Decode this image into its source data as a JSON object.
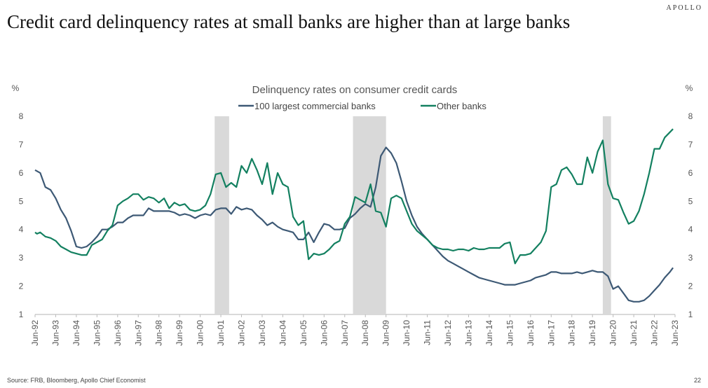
{
  "header": {
    "brand": "APOLLO",
    "title": "Credit card delinquency rates at small banks are higher than at large banks"
  },
  "footer": {
    "source": "Source: FRB, Bloomberg, Apollo Chief Economist",
    "page_number": "22"
  },
  "colors": {
    "large_banks": "#3d5975",
    "other_banks": "#138060",
    "recession": "#d9d9d9"
  },
  "chart_data": {
    "type": "line",
    "title": "Delinquency rates on consumer credit cards",
    "ylabel_left": "%",
    "ylabel_right": "%",
    "ylim": [
      1,
      8
    ],
    "yticks": [
      1,
      2,
      3,
      4,
      5,
      6,
      7,
      8
    ],
    "xlim": [
      1992.5,
      2023.5
    ],
    "x_tick_labels": [
      "Jun-92",
      "Jun-93",
      "Jun-94",
      "Jun-95",
      "Jun-96",
      "Jun-97",
      "Jun-98",
      "Jun-99",
      "Jun-00",
      "Jun-01",
      "Jun-02",
      "Jun-03",
      "Jun-04",
      "Jun-05",
      "Jun-06",
      "Jun-07",
      "Jun-08",
      "Jun-09",
      "Jun-10",
      "Jun-11",
      "Jun-12",
      "Jun-13",
      "Jun-14",
      "Jun-15",
      "Jun-16",
      "Jun-17",
      "Jun-18",
      "Jun-19",
      "Jun-20",
      "Jun-21",
      "Jun-22",
      "Jun-23"
    ],
    "recessions": [
      [
        2001.2,
        2001.9
      ],
      [
        2007.9,
        2009.5
      ],
      [
        2020.0,
        2020.4
      ]
    ],
    "legend_position": "top-center",
    "series": [
      {
        "name": "100 largest commercial banks",
        "color": "#3d5975",
        "points": [
          [
            1992.5,
            6.1
          ],
          [
            1992.75,
            6.0
          ],
          [
            1993.0,
            5.5
          ],
          [
            1993.25,
            5.4
          ],
          [
            1993.5,
            5.1
          ],
          [
            1993.75,
            4.7
          ],
          [
            1994.0,
            4.4
          ],
          [
            1994.25,
            3.95
          ],
          [
            1994.5,
            3.4
          ],
          [
            1994.75,
            3.35
          ],
          [
            1995.0,
            3.4
          ],
          [
            1995.25,
            3.55
          ],
          [
            1995.5,
            3.75
          ],
          [
            1995.75,
            4.0
          ],
          [
            1996.0,
            4.0
          ],
          [
            1996.25,
            4.1
          ],
          [
            1996.5,
            4.25
          ],
          [
            1996.75,
            4.25
          ],
          [
            1997.0,
            4.4
          ],
          [
            1997.25,
            4.5
          ],
          [
            1997.5,
            4.5
          ],
          [
            1997.75,
            4.5
          ],
          [
            1998.0,
            4.75
          ],
          [
            1998.25,
            4.65
          ],
          [
            1998.5,
            4.65
          ],
          [
            1998.75,
            4.65
          ],
          [
            1999.0,
            4.65
          ],
          [
            1999.25,
            4.6
          ],
          [
            1999.5,
            4.5
          ],
          [
            1999.75,
            4.55
          ],
          [
            2000.0,
            4.5
          ],
          [
            2000.25,
            4.4
          ],
          [
            2000.5,
            4.5
          ],
          [
            2000.75,
            4.55
          ],
          [
            2001.0,
            4.5
          ],
          [
            2001.25,
            4.7
          ],
          [
            2001.5,
            4.75
          ],
          [
            2001.75,
            4.75
          ],
          [
            2002.0,
            4.55
          ],
          [
            2002.25,
            4.8
          ],
          [
            2002.5,
            4.7
          ],
          [
            2002.75,
            4.75
          ],
          [
            2003.0,
            4.7
          ],
          [
            2003.25,
            4.5
          ],
          [
            2003.5,
            4.35
          ],
          [
            2003.75,
            4.15
          ],
          [
            2004.0,
            4.25
          ],
          [
            2004.25,
            4.1
          ],
          [
            2004.5,
            4.0
          ],
          [
            2004.75,
            3.95
          ],
          [
            2005.0,
            3.9
          ],
          [
            2005.25,
            3.65
          ],
          [
            2005.5,
            3.65
          ],
          [
            2005.75,
            3.9
          ],
          [
            2006.0,
            3.55
          ],
          [
            2006.25,
            3.9
          ],
          [
            2006.5,
            4.2
          ],
          [
            2006.75,
            4.15
          ],
          [
            2007.0,
            4.0
          ],
          [
            2007.25,
            4.0
          ],
          [
            2007.5,
            4.05
          ],
          [
            2007.75,
            4.4
          ],
          [
            2008.0,
            4.55
          ],
          [
            2008.25,
            4.75
          ],
          [
            2008.5,
            4.9
          ],
          [
            2008.75,
            4.8
          ],
          [
            2009.0,
            5.5
          ],
          [
            2009.25,
            6.6
          ],
          [
            2009.5,
            6.9
          ],
          [
            2009.75,
            6.7
          ],
          [
            2010.0,
            6.35
          ],
          [
            2010.25,
            5.7
          ],
          [
            2010.5,
            5.0
          ],
          [
            2010.75,
            4.5
          ],
          [
            2011.0,
            4.1
          ],
          [
            2011.25,
            3.85
          ],
          [
            2011.5,
            3.65
          ],
          [
            2011.75,
            3.45
          ],
          [
            2012.0,
            3.25
          ],
          [
            2012.25,
            3.05
          ],
          [
            2012.5,
            2.9
          ],
          [
            2012.75,
            2.8
          ],
          [
            2013.0,
            2.7
          ],
          [
            2013.25,
            2.6
          ],
          [
            2013.5,
            2.5
          ],
          [
            2013.75,
            2.4
          ],
          [
            2014.0,
            2.3
          ],
          [
            2014.25,
            2.25
          ],
          [
            2014.5,
            2.2
          ],
          [
            2014.75,
            2.15
          ],
          [
            2015.0,
            2.1
          ],
          [
            2015.25,
            2.05
          ],
          [
            2015.5,
            2.05
          ],
          [
            2015.75,
            2.05
          ],
          [
            2016.0,
            2.1
          ],
          [
            2016.25,
            2.15
          ],
          [
            2016.5,
            2.2
          ],
          [
            2016.75,
            2.3
          ],
          [
            2017.0,
            2.35
          ],
          [
            2017.25,
            2.4
          ],
          [
            2017.5,
            2.5
          ],
          [
            2017.75,
            2.5
          ],
          [
            2018.0,
            2.45
          ],
          [
            2018.25,
            2.45
          ],
          [
            2018.5,
            2.45
          ],
          [
            2018.75,
            2.5
          ],
          [
            2019.0,
            2.45
          ],
          [
            2019.25,
            2.5
          ],
          [
            2019.5,
            2.55
          ],
          [
            2019.75,
            2.5
          ],
          [
            2020.0,
            2.5
          ],
          [
            2020.25,
            2.35
          ],
          [
            2020.5,
            1.9
          ],
          [
            2020.75,
            2.0
          ],
          [
            2021.0,
            1.75
          ],
          [
            2021.25,
            1.5
          ],
          [
            2021.5,
            1.45
          ],
          [
            2021.75,
            1.45
          ],
          [
            2022.0,
            1.5
          ],
          [
            2022.25,
            1.65
          ],
          [
            2022.5,
            1.85
          ],
          [
            2022.75,
            2.05
          ],
          [
            2023.0,
            2.3
          ],
          [
            2023.25,
            2.5
          ],
          [
            2023.4,
            2.65
          ]
        ]
      },
      {
        "name": "Other banks",
        "color": "#138060",
        "points": [
          [
            1992.5,
            3.9
          ],
          [
            1992.6,
            3.85
          ],
          [
            1992.75,
            3.9
          ],
          [
            1993.0,
            3.75
          ],
          [
            1993.25,
            3.7
          ],
          [
            1993.5,
            3.6
          ],
          [
            1993.75,
            3.4
          ],
          [
            1994.0,
            3.3
          ],
          [
            1994.25,
            3.2
          ],
          [
            1994.5,
            3.15
          ],
          [
            1994.75,
            3.1
          ],
          [
            1995.0,
            3.1
          ],
          [
            1995.25,
            3.45
          ],
          [
            1995.5,
            3.55
          ],
          [
            1995.75,
            3.65
          ],
          [
            1996.0,
            3.95
          ],
          [
            1996.25,
            4.15
          ],
          [
            1996.5,
            4.85
          ],
          [
            1996.75,
            5.0
          ],
          [
            1997.0,
            5.1
          ],
          [
            1997.25,
            5.25
          ],
          [
            1997.5,
            5.25
          ],
          [
            1997.75,
            5.05
          ],
          [
            1998.0,
            5.15
          ],
          [
            1998.25,
            5.1
          ],
          [
            1998.5,
            4.95
          ],
          [
            1998.75,
            5.1
          ],
          [
            1999.0,
            4.75
          ],
          [
            1999.25,
            4.95
          ],
          [
            1999.5,
            4.85
          ],
          [
            1999.75,
            4.9
          ],
          [
            2000.0,
            4.7
          ],
          [
            2000.25,
            4.65
          ],
          [
            2000.5,
            4.7
          ],
          [
            2000.75,
            4.85
          ],
          [
            2001.0,
            5.25
          ],
          [
            2001.25,
            5.95
          ],
          [
            2001.5,
            6.0
          ],
          [
            2001.75,
            5.5
          ],
          [
            2002.0,
            5.65
          ],
          [
            2002.25,
            5.5
          ],
          [
            2002.5,
            6.25
          ],
          [
            2002.75,
            6.0
          ],
          [
            2003.0,
            6.5
          ],
          [
            2003.25,
            6.1
          ],
          [
            2003.5,
            5.6
          ],
          [
            2003.75,
            6.35
          ],
          [
            2004.0,
            5.25
          ],
          [
            2004.25,
            6.0
          ],
          [
            2004.5,
            5.6
          ],
          [
            2004.75,
            5.5
          ],
          [
            2005.0,
            4.45
          ],
          [
            2005.25,
            4.15
          ],
          [
            2005.5,
            4.3
          ],
          [
            2005.75,
            2.95
          ],
          [
            2006.0,
            3.15
          ],
          [
            2006.25,
            3.1
          ],
          [
            2006.5,
            3.15
          ],
          [
            2006.75,
            3.3
          ],
          [
            2007.0,
            3.5
          ],
          [
            2007.25,
            3.6
          ],
          [
            2007.5,
            4.2
          ],
          [
            2007.75,
            4.45
          ],
          [
            2008.0,
            5.15
          ],
          [
            2008.25,
            5.05
          ],
          [
            2008.5,
            4.95
          ],
          [
            2008.75,
            5.6
          ],
          [
            2009.0,
            4.65
          ],
          [
            2009.25,
            4.6
          ],
          [
            2009.5,
            4.1
          ],
          [
            2009.75,
            5.1
          ],
          [
            2010.0,
            5.2
          ],
          [
            2010.25,
            5.1
          ],
          [
            2010.5,
            4.65
          ],
          [
            2010.75,
            4.2
          ],
          [
            2011.0,
            3.95
          ],
          [
            2011.25,
            3.8
          ],
          [
            2011.5,
            3.65
          ],
          [
            2011.75,
            3.45
          ],
          [
            2012.0,
            3.35
          ],
          [
            2012.25,
            3.3
          ],
          [
            2012.5,
            3.3
          ],
          [
            2012.75,
            3.25
          ],
          [
            2013.0,
            3.3
          ],
          [
            2013.25,
            3.3
          ],
          [
            2013.5,
            3.25
          ],
          [
            2013.75,
            3.35
          ],
          [
            2014.0,
            3.3
          ],
          [
            2014.25,
            3.3
          ],
          [
            2014.5,
            3.35
          ],
          [
            2014.75,
            3.35
          ],
          [
            2015.0,
            3.35
          ],
          [
            2015.25,
            3.5
          ],
          [
            2015.5,
            3.55
          ],
          [
            2015.75,
            2.8
          ],
          [
            2016.0,
            3.1
          ],
          [
            2016.25,
            3.1
          ],
          [
            2016.5,
            3.15
          ],
          [
            2016.75,
            3.35
          ],
          [
            2017.0,
            3.55
          ],
          [
            2017.25,
            3.95
          ],
          [
            2017.5,
            5.5
          ],
          [
            2017.75,
            5.6
          ],
          [
            2018.0,
            6.1
          ],
          [
            2018.25,
            6.2
          ],
          [
            2018.5,
            5.95
          ],
          [
            2018.75,
            5.6
          ],
          [
            2019.0,
            5.6
          ],
          [
            2019.25,
            6.55
          ],
          [
            2019.5,
            6.0
          ],
          [
            2019.75,
            6.75
          ],
          [
            2020.0,
            7.15
          ],
          [
            2020.25,
            5.6
          ],
          [
            2020.5,
            5.1
          ],
          [
            2020.75,
            5.05
          ],
          [
            2021.0,
            4.6
          ],
          [
            2021.25,
            4.2
          ],
          [
            2021.5,
            4.3
          ],
          [
            2021.75,
            4.65
          ],
          [
            2022.0,
            5.25
          ],
          [
            2022.25,
            6.0
          ],
          [
            2022.5,
            6.85
          ],
          [
            2022.75,
            6.85
          ],
          [
            2023.0,
            7.25
          ],
          [
            2023.4,
            7.55
          ]
        ]
      }
    ]
  }
}
